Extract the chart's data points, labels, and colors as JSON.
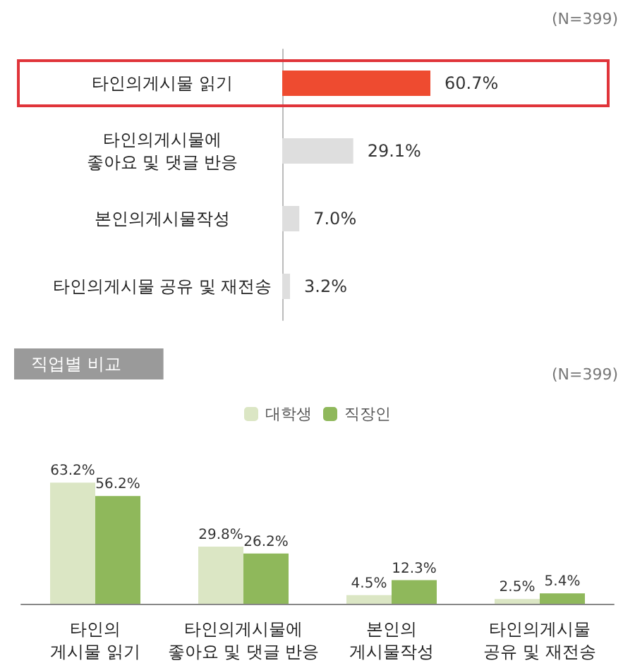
{
  "chart_data": [
    {
      "type": "bar",
      "orientation": "horizontal",
      "annotations": [
        "(N=399)"
      ],
      "categories": [
        "타인의게시물 읽기",
        "타인의게시물에\n좋아요 및 댓글 반응",
        "본인의게시물작성",
        "타인의게시물 공유 및 재전송"
      ],
      "series": [
        {
          "values": [
            60.7,
            29.1,
            7.0,
            3.2
          ],
          "colors": [
            "#ee4b30",
            "#dedede",
            "#dedede",
            "#dedede"
          ],
          "value_labels": [
            "60.7%",
            "29.1%",
            "7.0%",
            "3.2%"
          ]
        }
      ],
      "tick_labels": "y",
      "legend": false
    },
    {
      "type": "bar",
      "title": "직업별 비교",
      "annotations": [
        "(N=399)"
      ],
      "categories": [
        "타인의\n게시물 읽기",
        "타인의게시물에\n좋아요 및 댓글 반응",
        "본인의\n게시물작성",
        "타인의게시물\n공유 및 재전송"
      ],
      "series": [
        {
          "name": "대학생",
          "color": "#dbe6c4",
          "values": [
            63.2,
            29.8,
            4.5,
            2.5
          ],
          "value_labels": [
            "63.2%",
            "29.8%",
            "4.5%",
            "2.5%"
          ]
        },
        {
          "name": "직장인",
          "color": "#8fb85b",
          "values": [
            56.2,
            26.2,
            12.3,
            5.4
          ],
          "value_labels": [
            "56.2%",
            "26.2%",
            "12.3%",
            "5.4%"
          ]
        }
      ],
      "tick_labels": "x",
      "legend": "top"
    }
  ]
}
